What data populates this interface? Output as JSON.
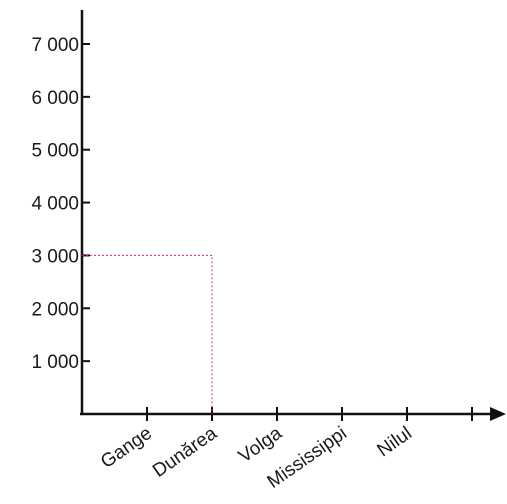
{
  "chart_data": {
    "type": "bar",
    "categories": [
      "Gange",
      "Dunărea",
      "Volga",
      "Mississippi",
      "Nilul"
    ],
    "values": [
      null,
      3000,
      null,
      null,
      null
    ],
    "yticks": [
      {
        "value": 1000,
        "label": "1 000"
      },
      {
        "value": 2000,
        "label": "2 000"
      },
      {
        "value": 3000,
        "label": "3 000"
      },
      {
        "value": 4000,
        "label": "4 000"
      },
      {
        "value": 5000,
        "label": "5 000"
      },
      {
        "value": 6000,
        "label": "6 000"
      },
      {
        "value": 7000,
        "label": "7 000"
      }
    ],
    "ylim": [
      0,
      7000
    ],
    "title": "",
    "xlabel": "",
    "ylabel": "",
    "grid": false,
    "guide": {
      "category": "Dunărea",
      "value": 3000,
      "color": "#e0159b",
      "style": "dotted"
    }
  }
}
